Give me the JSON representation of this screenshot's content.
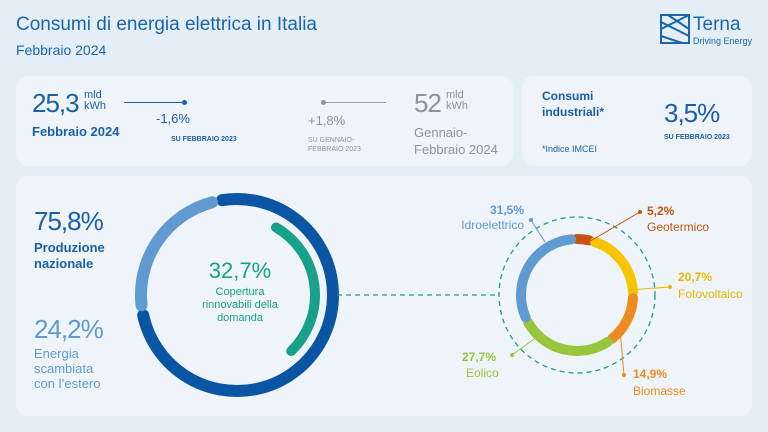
{
  "header": {
    "title": "Consumi di energia elettrica in Italia",
    "subtitle": "Febbraio 2024",
    "logo_text": "Terna",
    "logo_tagline": "Driving Energy"
  },
  "kpis": {
    "month": {
      "value": "25,3",
      "unit_1": "mld",
      "unit_2": "kWh",
      "label": "Febbraio 2024",
      "change": "-1,6%",
      "change_ref": "SU FEBBRAIO 2023"
    },
    "ytd": {
      "value": "52",
      "unit_1": "mld",
      "unit_2": "kWh",
      "label_1": "Gennaio-",
      "label_2": "Febbraio 2024",
      "change": "+1,8%",
      "change_ref_1": "SU GENNAIO-",
      "change_ref_2": "FEBBRAIO 2023"
    },
    "industrial": {
      "label_1": "Consumi",
      "label_2": "industriali*",
      "value": "3,5%",
      "change_ref": "SU FEBBRAIO 2023",
      "footnote": "*Indice IMCEI"
    }
  },
  "chart_data": [
    {
      "type": "pie",
      "variant": "donut",
      "categories": [
        "Produzione nazionale",
        "Energia scambiata con l'estero"
      ],
      "values": [
        75.8,
        24.2
      ],
      "value_labels": [
        "75,8%",
        "24,2%"
      ],
      "label_lines": [
        [
          "Produzione",
          "nazionale"
        ],
        [
          "Energia",
          "scambiata",
          "con l’estero"
        ]
      ],
      "colors": [
        "#0b56a4",
        "#5f9bd0"
      ],
      "inner": {
        "value": 32.7,
        "value_label": "32,7%",
        "label_lines": [
          "Copertura",
          "rinnovabili della",
          "domanda"
        ],
        "color": "#17a08a"
      }
    },
    {
      "type": "pie",
      "variant": "donut",
      "categories": [
        "Geotermico",
        "Fotovoltaico",
        "Biomasse",
        "Eolico",
        "Idroelettrico"
      ],
      "values": [
        5.2,
        20.7,
        14.9,
        27.7,
        31.5
      ],
      "value_labels": [
        "5,2%",
        "20,7%",
        "14,9%",
        "27,7%",
        "31,5%"
      ],
      "colors": [
        "#c4530f",
        "#f6c400",
        "#ee8a1f",
        "#98c53c",
        "#5f9bd0"
      ]
    }
  ]
}
